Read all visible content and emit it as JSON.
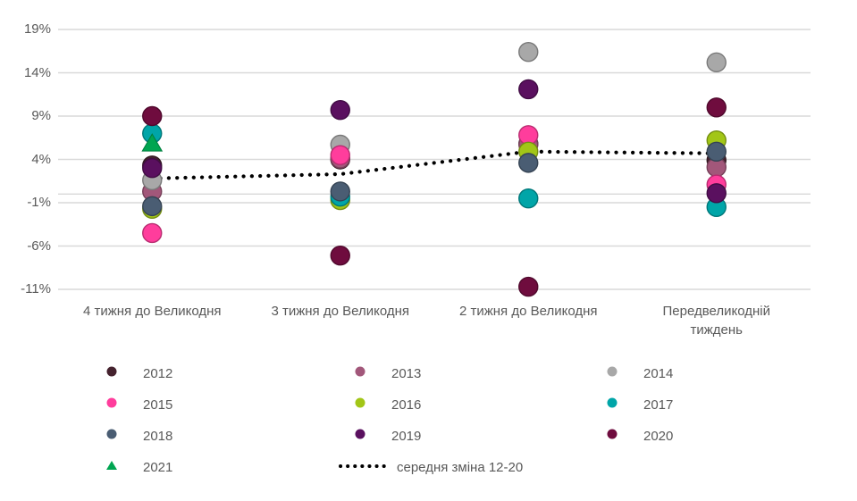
{
  "chart_data": {
    "type": "scatter",
    "categories": [
      "4 тижня до Великодня",
      "3 тижня до Великодня",
      "2 тижня до Великодня",
      "Передвеликодній тиждень"
    ],
    "y_axis": {
      "tick_labels": [
        "19%",
        "14%",
        "9%",
        "4%",
        "-1%",
        "-6%",
        "-11%"
      ],
      "tick_values": [
        19,
        14,
        9,
        4,
        -1,
        -6,
        -11
      ],
      "unit": "%",
      "zero_line": true
    },
    "ylim": [
      -12.5,
      22.5
    ],
    "grid": true,
    "legend_position": "bottom",
    "series": [
      {
        "name": "2012",
        "marker": "circle",
        "color": "#45222e",
        "values": [
          3.3,
          4.0,
          5.8,
          3.9
        ]
      },
      {
        "name": "2013",
        "marker": "circle",
        "color": "#a2577a",
        "values": [
          0.3,
          4.1,
          5.7,
          3.1
        ]
      },
      {
        "name": "2014",
        "marker": "circle",
        "color": "#a8a8a8",
        "values": [
          1.6,
          5.7,
          16.4,
          15.2
        ]
      },
      {
        "name": "2015",
        "marker": "circle",
        "color": "#ff3d9c",
        "values": [
          -4.5,
          4.5,
          6.8,
          1.1
        ]
      },
      {
        "name": "2016",
        "marker": "circle",
        "color": "#a2c617",
        "values": [
          -1.7,
          -0.7,
          4.9,
          6.2
        ]
      },
      {
        "name": "2017",
        "marker": "circle",
        "color": "#00a5a8",
        "values": [
          7.0,
          -0.3,
          -0.5,
          -1.5
        ]
      },
      {
        "name": "2018",
        "marker": "circle",
        "color": "#4a5d73",
        "values": [
          -1.4,
          0.3,
          3.6,
          4.9
        ]
      },
      {
        "name": "2019",
        "marker": "circle",
        "color": "#5a105f",
        "values": [
          3.0,
          9.7,
          12.1,
          0.1
        ]
      },
      {
        "name": "2020",
        "marker": "circle",
        "color": "#6f0c3e",
        "values": [
          9.0,
          -7.1,
          -10.7,
          10.0
        ]
      },
      {
        "name": "2021",
        "marker": "triangle",
        "color": "#00a551",
        "values": [
          5.9,
          null,
          null,
          null
        ]
      }
    ],
    "average_line": {
      "label": "середня зміна 12-20",
      "style": "dotted",
      "color": "#000000",
      "values": [
        1.8,
        2.3,
        4.9,
        4.7
      ]
    }
  },
  "colors": {
    "background": "#ffffff",
    "gridline": "#d9d9d9",
    "axis_text": "#595959",
    "legend_text": "#595959"
  }
}
